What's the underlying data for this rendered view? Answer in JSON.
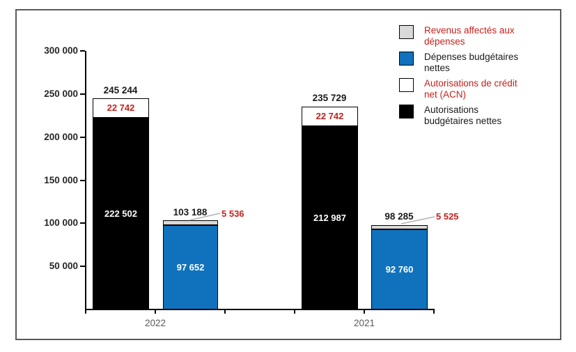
{
  "colors": {
    "red_text": "#C5211D",
    "blue_bar": "#1072BC",
    "gray_bar": "#D9D9D9",
    "white_bar": "#FFFFFF",
    "black_bar": "#000000",
    "axis_label_gray": "#595959",
    "leader_line_gray": "#A6A6A6"
  },
  "legend": {
    "items": [
      {
        "label": "Revenus affectés aux\ndépenses",
        "swatch": "#D9D9D9",
        "text_color": "#C5211D"
      },
      {
        "label": "Dépenses budgétaires\nnettes",
        "swatch": "#1072BC",
        "text_color": "#1A1A1A"
      },
      {
        "label": "Autorisations de crédit\nnet (ACN)",
        "swatch": "#FFFFFF",
        "text_color": "#C5211D"
      },
      {
        "label": "Autorisations\nbudgétaires nettes",
        "swatch": "#000000",
        "text_color": "#1A1A1A"
      }
    ]
  },
  "axis": {
    "yticks": [
      {
        "label": "300 000",
        "value": 300000
      },
      {
        "label": "250 000",
        "value": 250000
      },
      {
        "label": "200 000",
        "value": 200000
      },
      {
        "label": "150 000",
        "value": 150000
      },
      {
        "label": "100 000",
        "value": 100000
      },
      {
        "label": "50 000",
        "value": 50000
      }
    ],
    "xlabels": [
      "2022",
      "2021"
    ]
  },
  "bars": {
    "y2022": {
      "auth_total": "245 244",
      "acn": "22 742",
      "abn": "222 502",
      "dep_total": "103 188",
      "rad": "5 536",
      "dbn": "97 652"
    },
    "y2021": {
      "auth_total": "235 729",
      "acn": "22 742",
      "abn": "212 987",
      "dep_total": "98 285",
      "rad": "5 525",
      "dbn": "92 760"
    }
  },
  "chart_data": {
    "type": "bar",
    "subtype": "grouped-stacked-columns",
    "categories": [
      "2022",
      "2021"
    ],
    "series": [
      {
        "name": "Autorisations budgétaires nettes",
        "color": "#000000",
        "values": [
          222502,
          212987
        ]
      },
      {
        "name": "Autorisations de crédit net (ACN)",
        "color": "#FFFFFF",
        "values": [
          22742,
          22742
        ]
      },
      {
        "name": "Dépenses budgétaires nettes",
        "color": "#1072BC",
        "values": [
          97652,
          92760
        ]
      },
      {
        "name": "Revenus affectés aux dépenses",
        "color": "#D9D9D9",
        "values": [
          5536,
          5525
        ]
      }
    ],
    "stacks": [
      {
        "name": "Autorisations",
        "members": [
          "Autorisations budgétaires nettes",
          "Autorisations de crédit net (ACN)"
        ],
        "totals": [
          245244,
          235729
        ]
      },
      {
        "name": "Dépenses",
        "members": [
          "Dépenses budgétaires nettes",
          "Revenus affectés aux dépenses"
        ],
        "totals": [
          103188,
          98285
        ]
      }
    ],
    "title": "",
    "xlabel": "",
    "ylabel": "",
    "ylim": [
      0,
      300000
    ],
    "ytick_step": 50000,
    "grid": false,
    "legend_position": "top-right"
  }
}
